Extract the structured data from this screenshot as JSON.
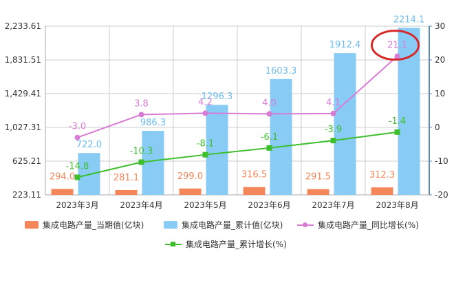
{
  "chart_data": {
    "type": "bar+line",
    "categories": [
      "2023年3月",
      "2023年4月",
      "2023年5月",
      "2023年6月",
      "2023年7月",
      "2023年8月"
    ],
    "series": [
      {
        "name": "集成电路产量_当期值(亿块)",
        "kind": "bar",
        "axis": "left",
        "color": "#F4875A",
        "values": [
          294.0,
          281.1,
          299.0,
          316.5,
          291.5,
          312.3
        ],
        "labels": [
          "294.0",
          "281.1",
          "299.0",
          "316.5",
          "291.5",
          "312.3"
        ]
      },
      {
        "name": "集成电路产量_累计值(亿块)",
        "kind": "bar",
        "axis": "left",
        "color": "#88CCF5",
        "values": [
          722.0,
          986.3,
          1296.3,
          1603.3,
          1912.4,
          2214.1
        ],
        "labels": [
          "722.0",
          "986.3",
          "1296.3",
          "1603.3",
          "1912.4",
          "2214.1"
        ]
      },
      {
        "name": "集成电路产量_同比增长(%)",
        "kind": "line",
        "axis": "right",
        "color": "#D77BD5",
        "marker": "circle",
        "values": [
          -3.0,
          3.8,
          4.2,
          4.0,
          4.1,
          21.1
        ],
        "labels": [
          "-3.0",
          "3.8",
          "4.2",
          "4.0",
          "4.1",
          "21.1"
        ]
      },
      {
        "name": "集成电路产量_累计增长(%)",
        "kind": "line",
        "axis": "right",
        "color": "#3DBE2C",
        "marker": "square",
        "values": [
          -14.8,
          -10.3,
          -8.1,
          -6.1,
          -3.9,
          -1.4
        ],
        "labels": [
          "-14.8",
          "-10.3",
          "-8.1",
          "-6.1",
          "-3.9",
          "-1.4"
        ]
      }
    ],
    "y_left": {
      "ticks": [
        223.11,
        625.21,
        1027.31,
        1429.41,
        1831.51,
        2233.61
      ],
      "tick_labels": [
        "223.11",
        "625.21",
        "1,027.31",
        "1,429.41",
        "1,831.51",
        "2,233.61"
      ],
      "range": [
        223.11,
        2233.61
      ]
    },
    "y_right": {
      "ticks": [
        -20,
        -10,
        0,
        10,
        20,
        30
      ],
      "tick_labels": [
        "-20",
        "-10",
        "0",
        "10",
        "20",
        "30"
      ],
      "range": [
        -20,
        30
      ]
    },
    "grid": true,
    "legend_position": "bottom",
    "annotation": {
      "type": "highlight-circle",
      "target": "21.1",
      "color": "#D62A2A"
    }
  },
  "colors": {
    "grid": "#cccccc",
    "axis_text": "#333333",
    "axis_line": "#aaaaaa",
    "right_axis_line": "#5B8DB8"
  }
}
